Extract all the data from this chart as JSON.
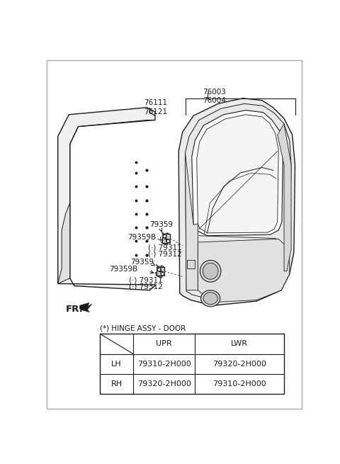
{
  "bg_color": "#ffffff",
  "line_color": "#1a1a1a",
  "title": "(*) HINGE ASSY - DOOR",
  "table_rows": [
    [
      "LH",
      "79310-2H000",
      "79320-2H000"
    ],
    [
      "RH",
      "79320-2H000",
      "79310-2H000"
    ]
  ]
}
